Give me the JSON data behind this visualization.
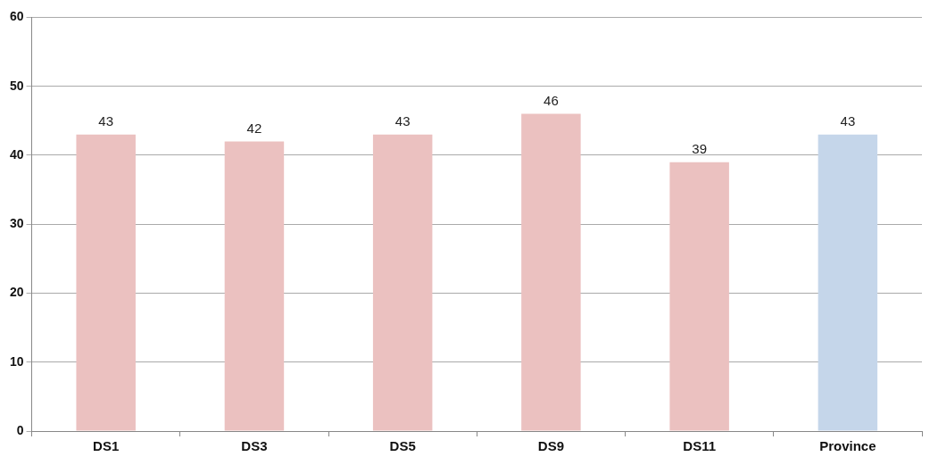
{
  "chart_data": {
    "type": "bar",
    "categories": [
      "DS1",
      "DS3",
      "DS5",
      "DS9",
      "DS11",
      "Province"
    ],
    "values": [
      43,
      42,
      43,
      46,
      39,
      43
    ],
    "colors": [
      "#ebc1c0",
      "#ebc1c0",
      "#ebc1c0",
      "#ebc1c0",
      "#ebc1c0",
      "#c5d6ea"
    ],
    "ylim": [
      0,
      60
    ],
    "yticks": [
      0,
      10,
      20,
      30,
      40,
      50,
      60
    ],
    "grid": "y",
    "data_labels": true,
    "legend": false
  }
}
